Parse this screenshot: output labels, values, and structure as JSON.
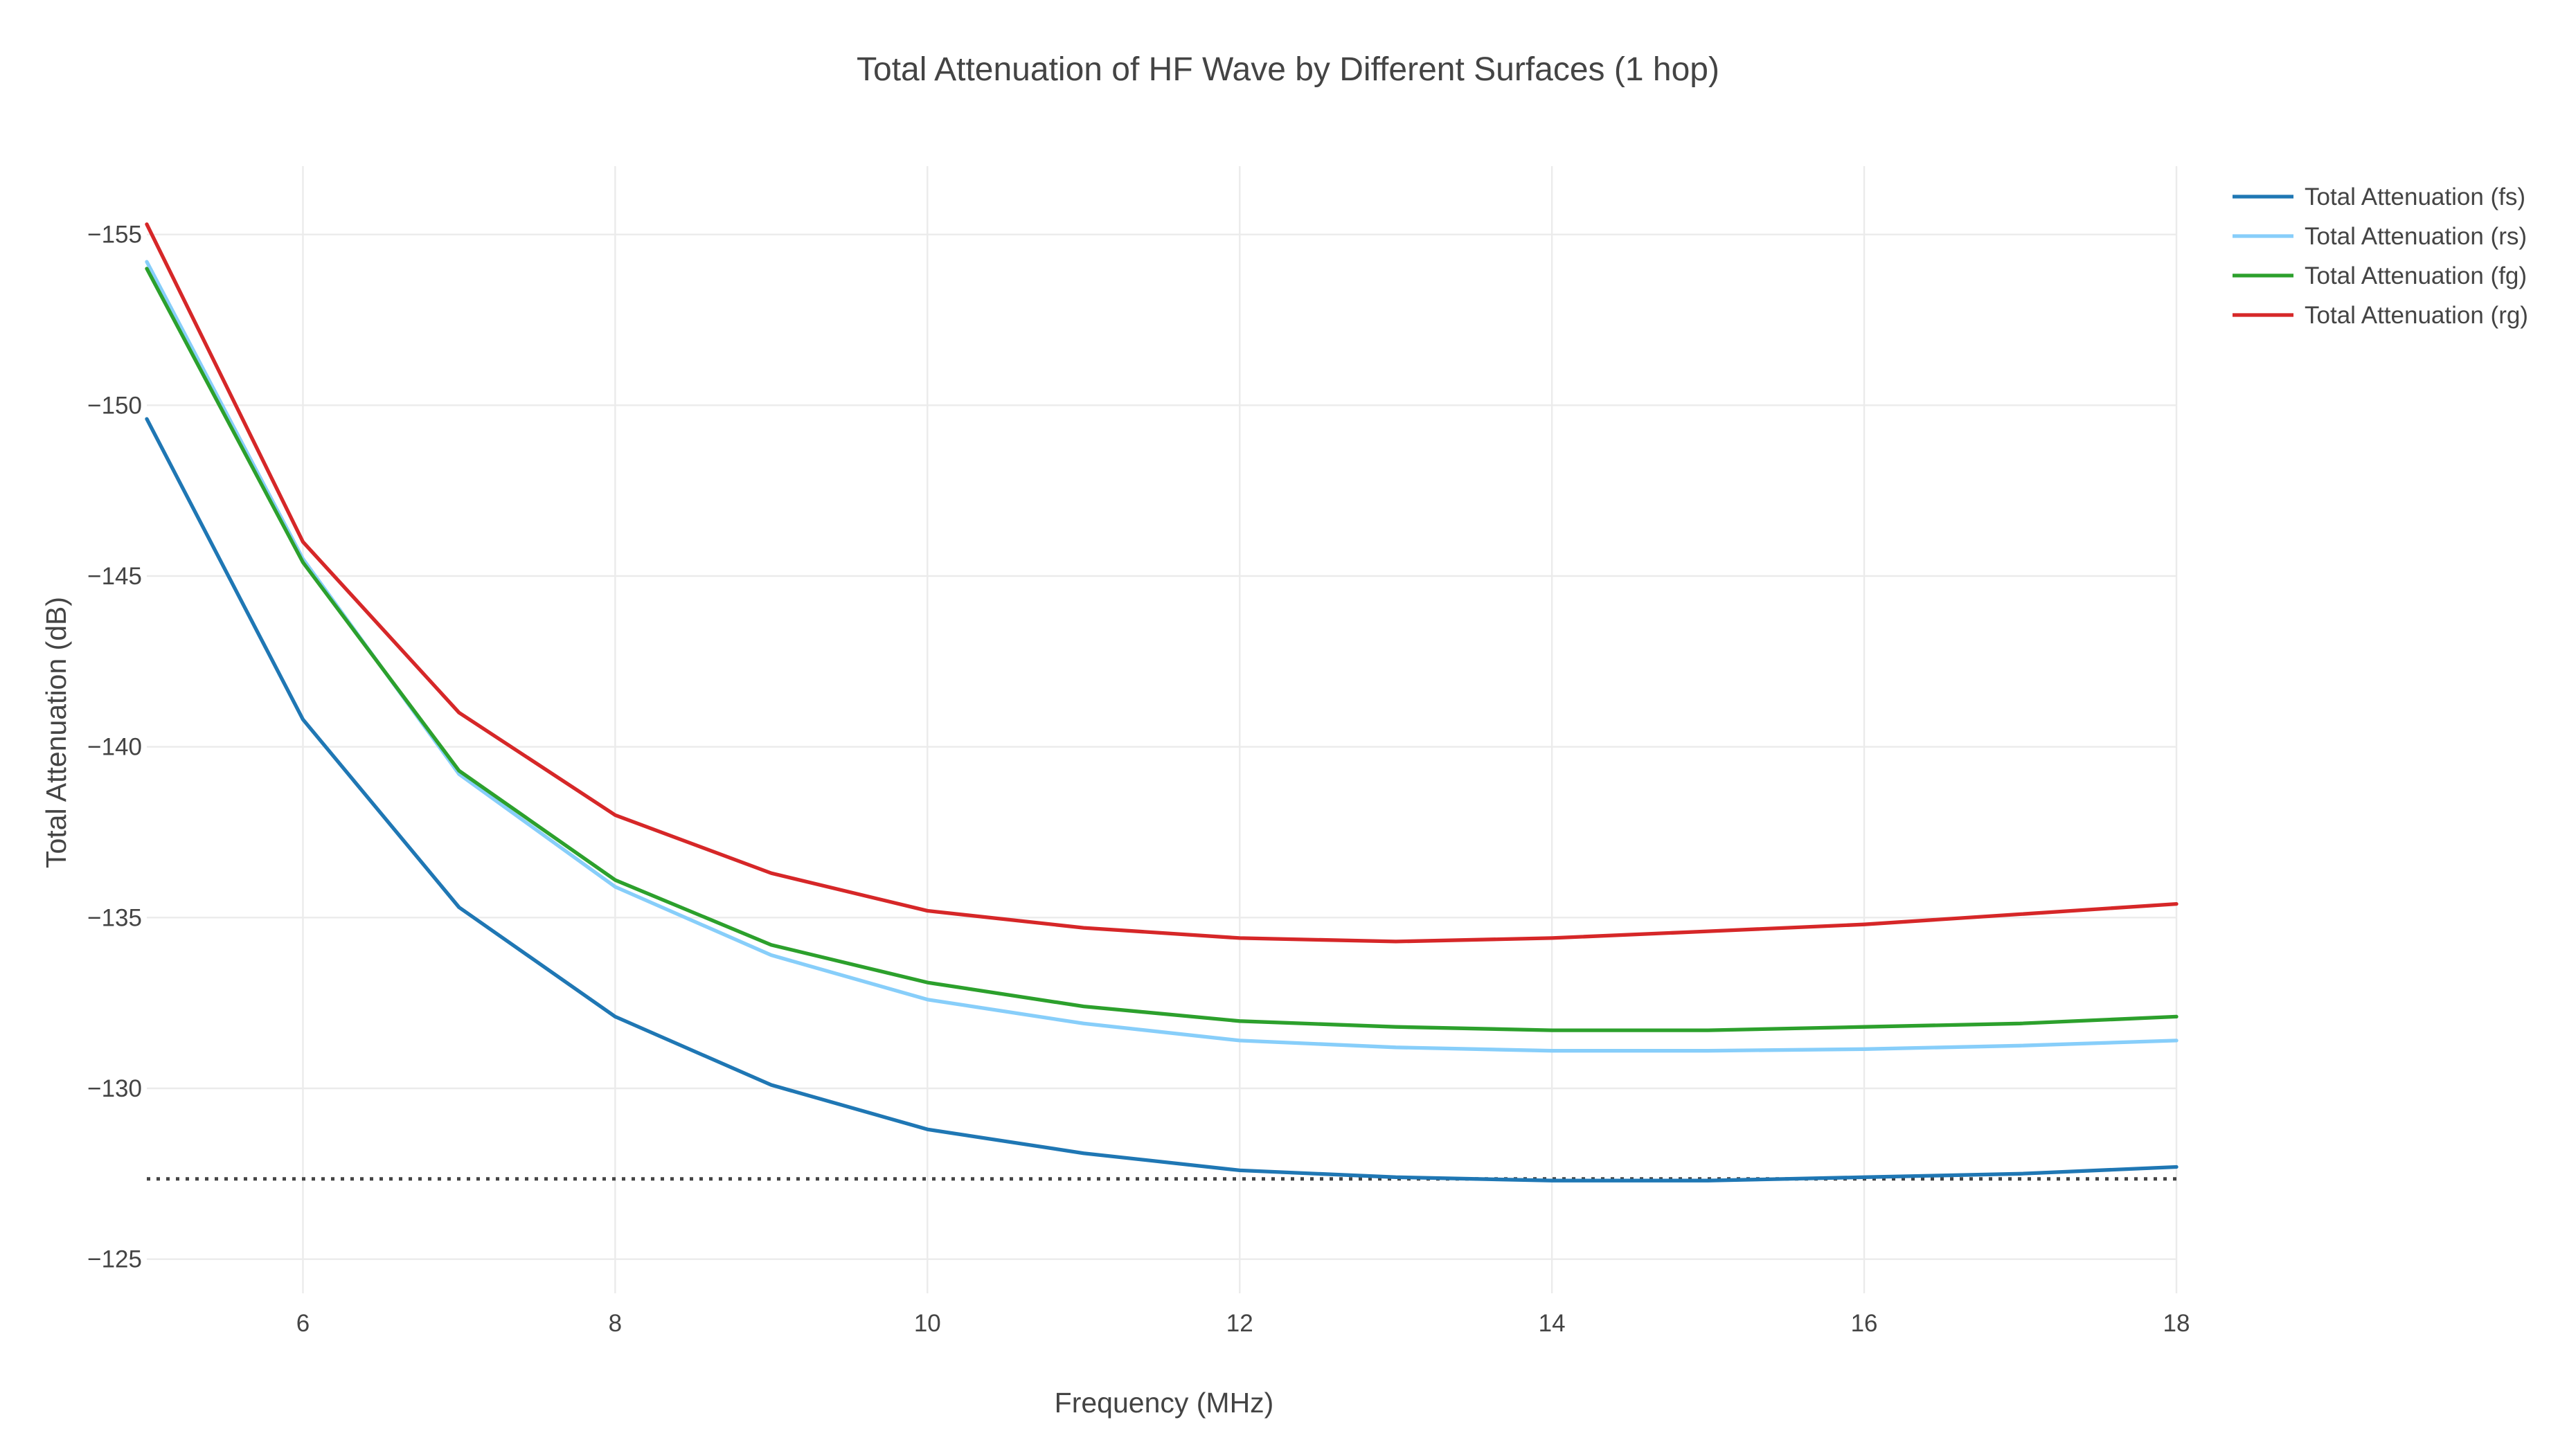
{
  "chart_data": {
    "type": "line",
    "title": "Total Attenuation of HF Wave by Different Surfaces (1 hop)",
    "xlabel": "Frequency (MHz)",
    "ylabel": "Total Attenuation (dB)",
    "xlim": [
      5,
      18
    ],
    "ylim": [
      -157,
      -124
    ],
    "y_reversed": true,
    "grid": true,
    "legend_position": "top-right",
    "x_ticks": [
      6,
      8,
      10,
      12,
      14,
      16,
      18
    ],
    "x_tick_labels": [
      "6",
      "8",
      "10",
      "12",
      "14",
      "16",
      "18"
    ],
    "y_ticks": [
      -155,
      -150,
      -145,
      -140,
      -135,
      -130,
      -125
    ],
    "y_tick_labels": [
      "−155",
      "−150",
      "−145",
      "−140",
      "−135",
      "−130",
      "−125"
    ],
    "x": [
      5,
      6,
      7,
      8,
      9,
      10,
      11,
      12,
      13,
      14,
      15,
      16,
      17,
      18
    ],
    "series": [
      {
        "name": "Total Attenuation (fs)",
        "color": "#1f77b4",
        "values": [
          -149.6,
          -140.8,
          -135.3,
          -132.1,
          -130.1,
          -128.8,
          -128.1,
          -127.6,
          -127.4,
          -127.3,
          -127.3,
          -127.4,
          -127.5,
          -127.7
        ]
      },
      {
        "name": "Total Attenuation (rs)",
        "color": "#87cefa",
        "values": [
          -154.2,
          -145.5,
          -139.2,
          -135.9,
          -133.9,
          -132.6,
          -131.9,
          -131.4,
          -131.2,
          -131.1,
          -131.1,
          -131.15,
          -131.25,
          -131.4
        ]
      },
      {
        "name": "Total Attenuation (fg)",
        "color": "#2ca02c",
        "values": [
          -154.0,
          -145.4,
          -139.3,
          -136.1,
          -134.2,
          -133.1,
          -132.4,
          -131.97,
          -131.8,
          -131.7,
          -131.7,
          -131.8,
          -131.9,
          -132.1
        ]
      },
      {
        "name": "Total Attenuation (rg)",
        "color": "#d62728",
        "values": [
          -155.3,
          -146.0,
          -141.0,
          -138.0,
          -136.3,
          -135.2,
          -134.7,
          -134.4,
          -134.3,
          -134.4,
          -134.6,
          -134.8,
          -135.1,
          -135.4
        ]
      }
    ],
    "reference_line": {
      "y": -127.35,
      "style": "dotted",
      "color": "#444444"
    }
  }
}
